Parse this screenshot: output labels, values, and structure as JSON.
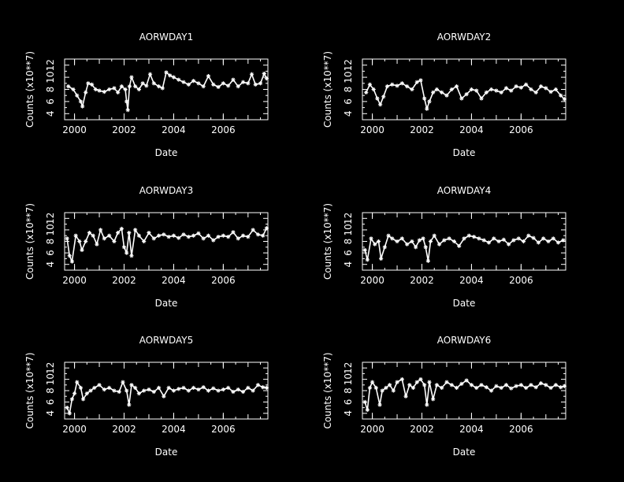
{
  "background_color": "#000000",
  "foreground_color": "#ffffff",
  "chart_data": [
    {
      "type": "line",
      "title": "AORWDAY1",
      "xlabel": "Date",
      "ylabel": "Counts (x10**7)",
      "xlim": [
        1999.6,
        2007.8
      ],
      "ylim": [
        3,
        13
      ],
      "xticks": [
        2000,
        2002,
        2004,
        2006
      ],
      "xtick_labels": [
        "2000",
        "2002",
        "2004",
        "2006"
      ],
      "yticks": [
        4,
        6,
        8,
        10,
        12
      ],
      "ytick_labels": [
        "4",
        "6",
        "8",
        "10",
        "12"
      ],
      "marker": "asterisk",
      "series": [
        {
          "x": [
            1999.75,
            1999.95,
            2000.1,
            2000.25,
            2000.32,
            2000.45,
            2000.55,
            2000.7,
            2000.85,
            2001.0,
            2001.2,
            2001.4,
            2001.6,
            2001.75,
            2001.9,
            2002.05,
            2002.1,
            2002.15,
            2002.22,
            2002.3,
            2002.45,
            2002.6,
            2002.75,
            2002.9,
            2003.05,
            2003.2,
            2003.4,
            2003.55,
            2003.7,
            2003.85,
            2004.0,
            2004.2,
            2004.4,
            2004.6,
            2004.8,
            2005.0,
            2005.2,
            2005.4,
            2005.6,
            2005.8,
            2006.0,
            2006.2,
            2006.4,
            2006.6,
            2006.8,
            2007.0,
            2007.15,
            2007.3,
            2007.5,
            2007.65,
            2007.75
          ],
          "y": [
            8.5,
            8.0,
            7.0,
            6.0,
            5.2,
            7.5,
            9.0,
            8.8,
            8.0,
            7.8,
            7.6,
            8.0,
            8.2,
            7.5,
            8.5,
            8.0,
            6.0,
            4.6,
            8.5,
            10.0,
            8.5,
            8.0,
            9.0,
            8.6,
            10.5,
            9.0,
            8.5,
            8.2,
            10.8,
            10.3,
            10.0,
            9.6,
            9.2,
            8.8,
            9.4,
            9.0,
            8.5,
            10.2,
            8.8,
            8.4,
            9.0,
            8.6,
            9.6,
            8.5,
            9.2,
            9.0,
            10.5,
            8.8,
            9.0,
            10.6,
            9.8
          ]
        }
      ]
    },
    {
      "type": "line",
      "title": "AORWDAY2",
      "xlabel": "Date",
      "ylabel": "Counts (x10**7)",
      "xlim": [
        1999.6,
        2007.8
      ],
      "ylim": [
        3,
        13
      ],
      "xticks": [
        2000,
        2002,
        2004,
        2006
      ],
      "xtick_labels": [
        "2000",
        "2002",
        "2004",
        "2006"
      ],
      "yticks": [
        4,
        6,
        8,
        10,
        12
      ],
      "ytick_labels": [
        "4",
        "6",
        "8",
        "10",
        "12"
      ],
      "marker": "asterisk",
      "series": [
        {
          "x": [
            1999.75,
            1999.9,
            2000.05,
            2000.2,
            2000.32,
            2000.45,
            2000.6,
            2000.8,
            2001.0,
            2001.2,
            2001.4,
            2001.6,
            2001.8,
            2001.95,
            2002.1,
            2002.2,
            2002.3,
            2002.45,
            2002.6,
            2002.8,
            2003.0,
            2003.2,
            2003.4,
            2003.6,
            2003.8,
            2004.0,
            2004.2,
            2004.4,
            2004.6,
            2004.8,
            2005.0,
            2005.2,
            2005.4,
            2005.6,
            2005.8,
            2006.0,
            2006.2,
            2006.4,
            2006.6,
            2006.8,
            2007.0,
            2007.2,
            2007.4,
            2007.6,
            2007.75
          ],
          "y": [
            7.5,
            8.8,
            8.0,
            6.5,
            5.5,
            6.8,
            8.5,
            8.8,
            8.6,
            9.0,
            8.5,
            8.0,
            9.2,
            9.5,
            6.5,
            4.8,
            6.0,
            7.5,
            8.0,
            7.5,
            7.0,
            8.0,
            8.5,
            6.5,
            7.2,
            8.0,
            7.8,
            6.5,
            7.5,
            8.0,
            7.8,
            7.5,
            8.2,
            7.8,
            8.5,
            8.3,
            8.8,
            8.0,
            7.5,
            8.5,
            8.2,
            7.6,
            8.0,
            7.0,
            6.4
          ]
        }
      ]
    },
    {
      "type": "line",
      "title": "AORWDAY3",
      "xlabel": "Date",
      "ylabel": "Counts (x10**7)",
      "xlim": [
        1999.6,
        2007.8
      ],
      "ylim": [
        3,
        13
      ],
      "xticks": [
        2000,
        2002,
        2004,
        2006
      ],
      "xtick_labels": [
        "2000",
        "2002",
        "2004",
        "2006"
      ],
      "yticks": [
        4,
        6,
        8,
        10,
        12
      ],
      "ytick_labels": [
        "4",
        "6",
        "8",
        "10",
        "12"
      ],
      "marker": "asterisk",
      "series": [
        {
          "x": [
            1999.7,
            1999.8,
            1999.9,
            2000.05,
            2000.2,
            2000.3,
            2000.45,
            2000.6,
            2000.75,
            2000.9,
            2001.05,
            2001.2,
            2001.4,
            2001.6,
            2001.75,
            2001.9,
            2002.0,
            2002.1,
            2002.2,
            2002.3,
            2002.45,
            2002.6,
            2002.8,
            2003.0,
            2003.2,
            2003.4,
            2003.6,
            2003.8,
            2004.0,
            2004.2,
            2004.4,
            2004.6,
            2004.8,
            2005.0,
            2005.2,
            2005.4,
            2005.6,
            2005.8,
            2006.0,
            2006.2,
            2006.4,
            2006.6,
            2006.8,
            2007.0,
            2007.2,
            2007.4,
            2007.6,
            2007.75
          ],
          "y": [
            8.5,
            5.5,
            4.5,
            9.0,
            8.0,
            6.5,
            8.0,
            9.5,
            9.0,
            7.5,
            10.0,
            8.5,
            9.0,
            8.0,
            9.5,
            10.2,
            7.0,
            6.0,
            9.5,
            5.5,
            10.0,
            9.0,
            8.0,
            9.5,
            8.5,
            9.0,
            9.2,
            8.8,
            9.0,
            8.6,
            9.2,
            8.8,
            9.0,
            9.4,
            8.5,
            9.0,
            8.2,
            8.8,
            9.0,
            8.8,
            9.6,
            8.5,
            9.0,
            8.8,
            10.0,
            9.2,
            9.0,
            10.3
          ]
        }
      ]
    },
    {
      "type": "line",
      "title": "AORWDAY4",
      "xlabel": "Date",
      "ylabel": "Counts (x10**7)",
      "xlim": [
        1999.6,
        2007.8
      ],
      "ylim": [
        3,
        13
      ],
      "xticks": [
        2000,
        2002,
        2004,
        2006
      ],
      "xtick_labels": [
        "2000",
        "2002",
        "2004",
        "2006"
      ],
      "yticks": [
        4,
        6,
        8,
        10,
        12
      ],
      "ytick_labels": [
        "4",
        "6",
        "8",
        "10",
        "12"
      ],
      "marker": "asterisk",
      "series": [
        {
          "x": [
            1999.7,
            1999.8,
            1999.95,
            2000.1,
            2000.25,
            2000.35,
            2000.5,
            2000.65,
            2000.8,
            2001.0,
            2001.2,
            2001.4,
            2001.6,
            2001.75,
            2001.9,
            2002.05,
            2002.15,
            2002.25,
            2002.35,
            2002.5,
            2002.7,
            2002.9,
            2003.1,
            2003.3,
            2003.5,
            2003.7,
            2003.9,
            2004.1,
            2004.3,
            2004.5,
            2004.7,
            2004.9,
            2005.1,
            2005.3,
            2005.5,
            2005.7,
            2005.9,
            2006.1,
            2006.3,
            2006.5,
            2006.7,
            2006.9,
            2007.1,
            2007.3,
            2007.5,
            2007.7
          ],
          "y": [
            6.5,
            4.8,
            8.5,
            7.5,
            8.0,
            5.0,
            7.0,
            9.0,
            8.5,
            8.0,
            8.5,
            7.5,
            8.0,
            7.0,
            8.2,
            8.5,
            7.0,
            4.6,
            8.0,
            9.0,
            7.5,
            8.2,
            8.5,
            8.0,
            7.2,
            8.5,
            9.0,
            8.8,
            8.5,
            8.2,
            7.8,
            8.5,
            8.0,
            8.3,
            7.5,
            8.2,
            8.5,
            8.0,
            9.0,
            8.6,
            7.8,
            8.5,
            8.0,
            8.5,
            7.8,
            8.2
          ]
        }
      ]
    },
    {
      "type": "line",
      "title": "AORWDAY5",
      "xlabel": "Date",
      "ylabel": "Counts (x10**7)",
      "xlim": [
        1999.6,
        2007.8
      ],
      "ylim": [
        3,
        13
      ],
      "xticks": [
        2000,
        2002,
        2004,
        2006
      ],
      "xtick_labels": [
        "2000",
        "2002",
        "2004",
        "2006"
      ],
      "yticks": [
        4,
        6,
        8,
        10,
        12
      ],
      "ytick_labels": [
        "4",
        "6",
        "8",
        "10",
        "12"
      ],
      "marker": "asterisk",
      "series": [
        {
          "x": [
            1999.7,
            1999.8,
            1999.9,
            2000.0,
            2000.1,
            2000.25,
            2000.35,
            2000.5,
            2000.65,
            2000.8,
            2001.0,
            2001.2,
            2001.4,
            2001.6,
            2001.8,
            2001.95,
            2002.1,
            2002.2,
            2002.3,
            2002.45,
            2002.6,
            2002.8,
            2003.0,
            2003.2,
            2003.4,
            2003.6,
            2003.8,
            2004.0,
            2004.2,
            2004.4,
            2004.6,
            2004.8,
            2005.0,
            2005.2,
            2005.4,
            2005.6,
            2005.8,
            2006.0,
            2006.2,
            2006.4,
            2006.6,
            2006.8,
            2007.0,
            2007.2,
            2007.4,
            2007.6,
            2007.75
          ],
          "y": [
            5.0,
            4.0,
            6.5,
            7.5,
            9.5,
            8.5,
            6.5,
            7.5,
            8.0,
            8.5,
            9.0,
            8.2,
            8.5,
            8.0,
            7.8,
            9.5,
            8.0,
            5.5,
            9.0,
            8.5,
            7.5,
            8.0,
            8.2,
            7.8,
            8.5,
            7.0,
            8.5,
            8.0,
            8.3,
            8.5,
            8.0,
            8.5,
            8.2,
            8.6,
            8.0,
            8.4,
            8.0,
            8.2,
            8.5,
            7.8,
            8.2,
            7.8,
            8.5,
            8.0,
            9.0,
            8.6,
            8.5
          ]
        }
      ]
    },
    {
      "type": "line",
      "title": "AORWDAY6",
      "xlabel": "Date",
      "ylabel": "Counts (x10**7)",
      "xlim": [
        1999.6,
        2007.8
      ],
      "ylim": [
        3,
        13
      ],
      "xticks": [
        2000,
        2002,
        2004,
        2006
      ],
      "xtick_labels": [
        "2000",
        "2002",
        "2004",
        "2006"
      ],
      "yticks": [
        4,
        6,
        8,
        10,
        12
      ],
      "ytick_labels": [
        "4",
        "6",
        "8",
        "10",
        "12"
      ],
      "marker": "asterisk",
      "series": [
        {
          "x": [
            1999.7,
            1999.8,
            1999.9,
            2000.0,
            2000.15,
            2000.3,
            2000.4,
            2000.55,
            2000.7,
            2000.85,
            2001.0,
            2001.2,
            2001.35,
            2001.5,
            2001.65,
            2001.8,
            2001.95,
            2002.1,
            2002.2,
            2002.3,
            2002.45,
            2002.6,
            2002.8,
            2003.0,
            2003.2,
            2003.4,
            2003.6,
            2003.8,
            2004.0,
            2004.2,
            2004.4,
            2004.6,
            2004.8,
            2005.0,
            2005.2,
            2005.4,
            2005.6,
            2005.8,
            2006.0,
            2006.2,
            2006.4,
            2006.6,
            2006.8,
            2007.0,
            2007.2,
            2007.4,
            2007.6,
            2007.75
          ],
          "y": [
            6.0,
            4.6,
            8.5,
            9.5,
            8.5,
            5.5,
            8.0,
            8.5,
            9.0,
            8.0,
            9.5,
            10.0,
            7.0,
            9.0,
            8.5,
            9.5,
            10.0,
            9.0,
            5.5,
            9.5,
            6.5,
            9.0,
            8.5,
            9.5,
            9.0,
            8.5,
            9.2,
            9.8,
            9.0,
            8.5,
            9.0,
            8.6,
            8.0,
            8.8,
            8.5,
            9.0,
            8.4,
            8.8,
            9.0,
            8.5,
            9.0,
            8.6,
            9.3,
            9.0,
            8.5,
            9.0,
            8.6,
            8.8
          ]
        }
      ]
    }
  ]
}
